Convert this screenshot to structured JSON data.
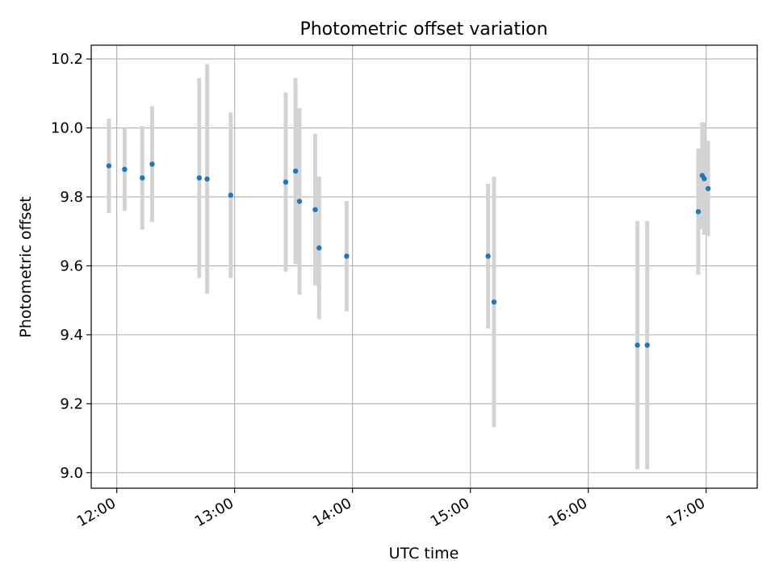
{
  "chart_data": {
    "type": "scatter",
    "title": "Photometric offset variation",
    "xlabel": "UTC time",
    "ylabel": "Photometric offset",
    "x_unit": "hours UTC",
    "xlim": [
      "11:47",
      "17:26"
    ],
    "ylim": [
      8.955,
      10.24
    ],
    "xticks": [
      "12:00",
      "13:00",
      "14:00",
      "15:00",
      "16:00",
      "17:00"
    ],
    "yticks": [
      "9.0",
      "9.2",
      "9.4",
      "9.6",
      "9.8",
      "10.0",
      "10.2"
    ],
    "grid": true,
    "legend": false,
    "series": [
      {
        "marker_color": "#1f77b4",
        "errorbar_color": "#d3d3d3",
        "points": [
          {
            "x": "11:56",
            "y": 9.89,
            "err": 0.137
          },
          {
            "x": "12:04",
            "y": 9.88,
            "err": 0.12
          },
          {
            "x": "12:13",
            "y": 9.855,
            "err": 0.15
          },
          {
            "x": "12:18",
            "y": 9.895,
            "err": 0.168
          },
          {
            "x": "12:42",
            "y": 9.855,
            "err": 0.29
          },
          {
            "x": "12:46",
            "y": 9.852,
            "err": 0.333
          },
          {
            "x": "12:58",
            "y": 9.805,
            "err": 0.24
          },
          {
            "x": "13:26",
            "y": 9.843,
            "err": 0.26
          },
          {
            "x": "13:31",
            "y": 9.875,
            "err": 0.27
          },
          {
            "x": "13:33",
            "y": 9.787,
            "err": 0.27
          },
          {
            "x": "13:41",
            "y": 9.763,
            "err": 0.22
          },
          {
            "x": "13:43",
            "y": 9.652,
            "err": 0.207
          },
          {
            "x": "13:57",
            "y": 9.628,
            "err": 0.16
          },
          {
            "x": "15:09",
            "y": 9.628,
            "err": 0.21
          },
          {
            "x": "15:12",
            "y": 9.495,
            "err": 0.363
          },
          {
            "x": "16:25",
            "y": 9.37,
            "err": 0.36
          },
          {
            "x": "16:30",
            "y": 9.37,
            "err": 0.36
          },
          {
            "x": "16:56",
            "y": 9.757,
            "err": 0.183
          },
          {
            "x": "16:58",
            "y": 9.862,
            "err": 0.155
          },
          {
            "x": "16:59",
            "y": 9.853,
            "err": 0.163
          },
          {
            "x": "17:01",
            "y": 9.824,
            "err": 0.138
          }
        ]
      }
    ]
  }
}
